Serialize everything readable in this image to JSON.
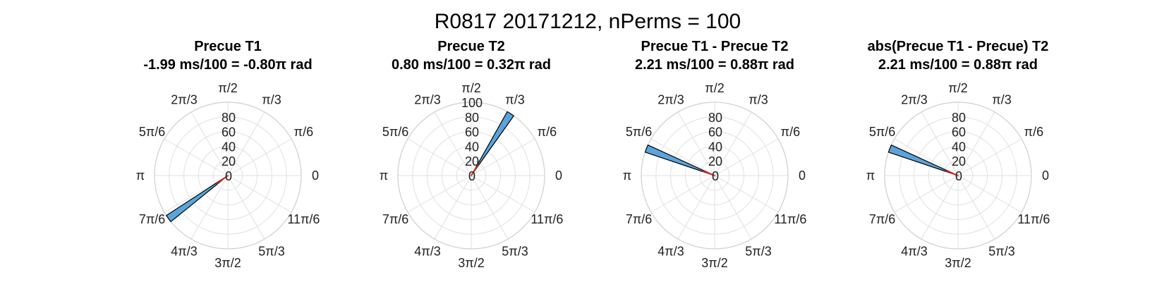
{
  "title": "R0817 20171212, nPerms = 100",
  "colors": {
    "bar_fill": "#5BA4DB",
    "bar_edge": "#000000",
    "mean_line": "#E0201B",
    "grid": "#e0e0e0"
  },
  "chart_data": [
    {
      "type": "polar-histogram",
      "title_line1": "Precue T1",
      "title_line2": "-1.99 ms/100 = -0.80π rad",
      "theta_tick_labels": [
        "0",
        "π/6",
        "π/3",
        "π/2",
        "2π/3",
        "5π/6",
        "π",
        "7π/6",
        "4π/3",
        "3π/2",
        "5π/3",
        "11π/6"
      ],
      "r_tick_labels": [
        "0",
        "20",
        "40",
        "60",
        "80"
      ],
      "rlim": [
        0,
        100
      ],
      "bar_center_rad_over_pi": 1.2,
      "bar_value": 100,
      "mean_angle_rad_over_pi": -0.8
    },
    {
      "type": "polar-histogram",
      "title_line1": "Precue T2",
      "title_line2": "0.80 ms/100 = 0.32π rad",
      "theta_tick_labels": [
        "0",
        "π/6",
        "π/3",
        "π/2",
        "2π/3",
        "5π/6",
        "π",
        "7π/6",
        "4π/3",
        "3π/2",
        "5π/3",
        "11π/6"
      ],
      "r_tick_labels": [
        "0",
        "20",
        "40",
        "60",
        "80",
        "100"
      ],
      "rlim": [
        0,
        100
      ],
      "bar_center_rad_over_pi": 0.32,
      "bar_value": 100,
      "mean_angle_rad_over_pi": 0.32
    },
    {
      "type": "polar-histogram",
      "title_line1": "Precue T1 - Precue T2",
      "title_line2": "2.21 ms/100 = 0.88π rad",
      "theta_tick_labels": [
        "0",
        "π/6",
        "π/3",
        "π/2",
        "2π/3",
        "5π/6",
        "π",
        "7π/6",
        "4π/3",
        "3π/2",
        "5π/3",
        "11π/6"
      ],
      "r_tick_labels": [
        "0",
        "20",
        "40",
        "60",
        "80"
      ],
      "rlim": [
        0,
        100
      ],
      "bar_center_rad_over_pi": 0.88,
      "bar_value": 100,
      "mean_angle_rad_over_pi": 0.88
    },
    {
      "type": "polar-histogram",
      "title_line1": "abs(Precue T1 - Precue) T2",
      "title_line2": "2.21 ms/100 = 0.88π rad",
      "theta_tick_labels": [
        "0",
        "π/6",
        "π/3",
        "π/2",
        "2π/3",
        "5π/6",
        "π",
        "7π/6",
        "4π/3",
        "3π/2",
        "5π/3",
        "11π/6"
      ],
      "r_tick_labels": [
        "0",
        "20",
        "40",
        "60",
        "80"
      ],
      "rlim": [
        0,
        100
      ],
      "bar_center_rad_over_pi": 0.88,
      "bar_value": 100,
      "mean_angle_rad_over_pi": 0.88
    }
  ]
}
